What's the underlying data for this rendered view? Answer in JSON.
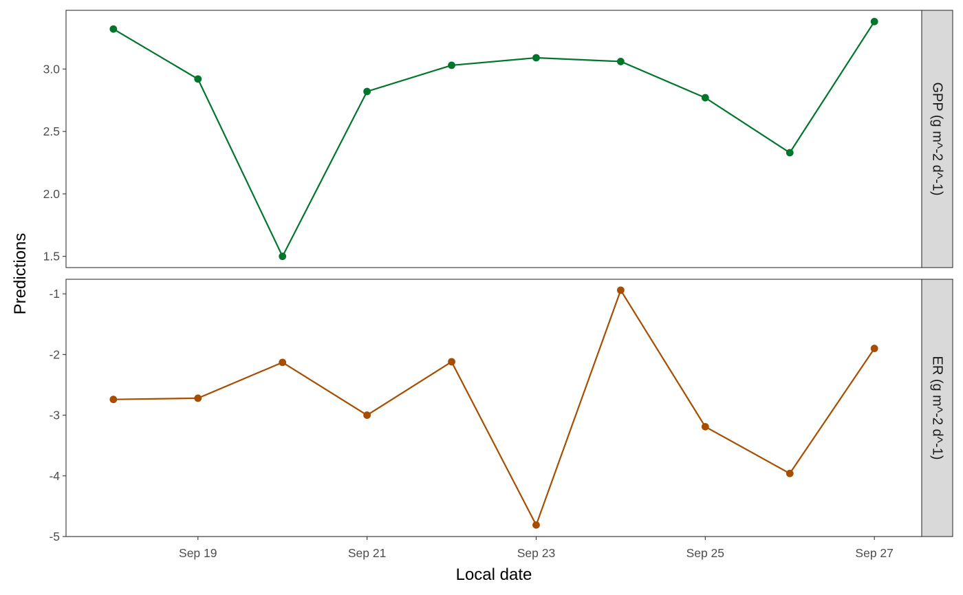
{
  "chart_data": {
    "type": "line",
    "xlabel": "Local date",
    "ylabel": "Predictions",
    "x": [
      "Sep 18",
      "Sep 19",
      "Sep 20",
      "Sep 21",
      "Sep 22",
      "Sep 23",
      "Sep 24",
      "Sep 25",
      "Sep 26",
      "Sep 27"
    ],
    "x_tick_labels": [
      "Sep 19",
      "Sep 21",
      "Sep 23",
      "Sep 25",
      "Sep 27"
    ],
    "xlim": [
      "Sep 17.44",
      "Sep 27.56"
    ],
    "grid": true,
    "facets": [
      {
        "strip_label": "GPP (g m^-2 d^-1)",
        "color": "#00752b",
        "values": [
          3.32,
          2.92,
          1.5,
          2.82,
          3.03,
          3.09,
          3.06,
          2.77,
          2.33,
          3.38
        ],
        "ylim": [
          1.41,
          3.47
        ],
        "y_ticks": [
          1.5,
          2.0,
          2.5,
          3.0
        ],
        "y_tick_labels": [
          "1.5",
          "2.0",
          "2.5",
          "3.0"
        ]
      },
      {
        "strip_label": "ER (g m^-2 d^-1)",
        "color": "#a64d00",
        "values": [
          -2.74,
          -2.72,
          -2.13,
          -3.0,
          -2.12,
          -4.81,
          -0.94,
          -3.19,
          -3.96,
          -1.9
        ],
        "ylim": [
          -5.0,
          -0.76
        ],
        "y_ticks": [
          -5,
          -4,
          -3,
          -2,
          -1
        ],
        "y_tick_labels": [
          "-5",
          "-4",
          "-3",
          "-2",
          "-1"
        ]
      }
    ]
  }
}
